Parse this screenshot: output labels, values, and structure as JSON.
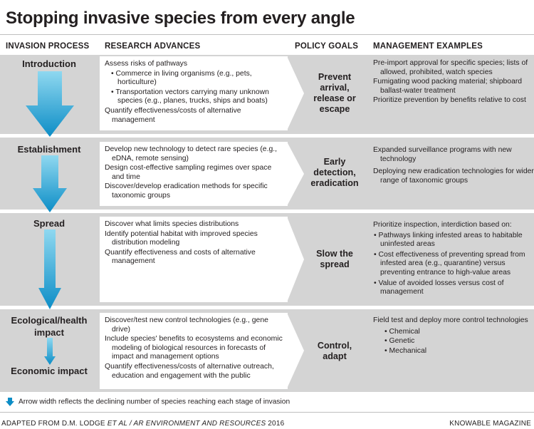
{
  "title": "Stopping invasive species from every angle",
  "columns": {
    "process": "INVASION PROCESS",
    "research": "RESEARCH ADVANCES",
    "policy": "POLICY GOALS",
    "management": "MANAGEMENT EXAMPLES"
  },
  "rows": [
    {
      "stage": "Introduction",
      "research": [
        "Assess risks of pathways",
        "• Commerce in living organisms (e.g., pets, horticulture)",
        "• Transportation vectors carrying many unknown species (e.g., planes, trucks, ships and boats)",
        "Quantify effectiveness/costs of alternative management"
      ],
      "policy": [
        "Prevent",
        "arrival,",
        "release or",
        "escape"
      ],
      "management": [
        "Pre-import approval for specific species; lists of allowed, prohibited, watch species",
        "Fumigating wood packing material; shipboard ballast-water treatment",
        "Prioritize prevention by benefits relative to cost"
      ]
    },
    {
      "stage": "Establishment",
      "research": [
        "Develop new technology to detect rare species (e.g., eDNA, remote sensing)",
        "Design cost-effective sampling regimes over space and time",
        "Discover/develop eradication methods for specific taxonomic groups"
      ],
      "policy": [
        "Early",
        "detection,",
        "eradication"
      ],
      "management": [
        "Expanded surveillance programs with new technology",
        "Deploying new eradication technologies for wider range of taxonomic groups"
      ]
    },
    {
      "stage": "Spread",
      "research": [
        "Discover what limits species distributions",
        "Identify potential habitat with improved species distribution modeling",
        "Quantify effectiveness and costs of alternative management"
      ],
      "policy": [
        "Slow the",
        "spread"
      ],
      "management": [
        "Prioritize inspection, interdiction based on:",
        "• Pathways linking infested areas to habitable uninfested areas",
        "• Cost effectiveness of preventing spread from infested area (e.g., quarantine) versus preventing entrance to high-value areas",
        "• Value of avoided losses versus cost of management"
      ]
    },
    {
      "stage": "Ecological/health impact",
      "stage2": "Economic impact",
      "research": [
        "Discover/test new control technologies (e.g., gene drive)",
        "Include species' benefits to ecosystems and economic modeling of biological resources in forecasts of impact and management options",
        "Quantify effectiveness/costs of alternative outreach, education and engagement with the public"
      ],
      "policy": [
        "Control,",
        "adapt"
      ],
      "management": [
        "Field test and deploy more control technologies",
        "• Chemical",
        "• Genetic",
        "• Mechanical"
      ]
    }
  ],
  "legend": "Arrow width reflects the declining number of species reaching each stage of invasion",
  "credit_left_prefix": "ADAPTED FROM D.M. LODGE ",
  "credit_left_italic": "ET AL / AR ENVIRONMENT AND RESOURCES",
  "credit_left_suffix": " 2016",
  "credit_right": "KNOWABLE MAGAZINE",
  "colors": {
    "band": "#d4d4d4",
    "arrow_dark": "#0c8dc6",
    "arrow_light": "#8fd8f0",
    "text": "#231f20"
  }
}
